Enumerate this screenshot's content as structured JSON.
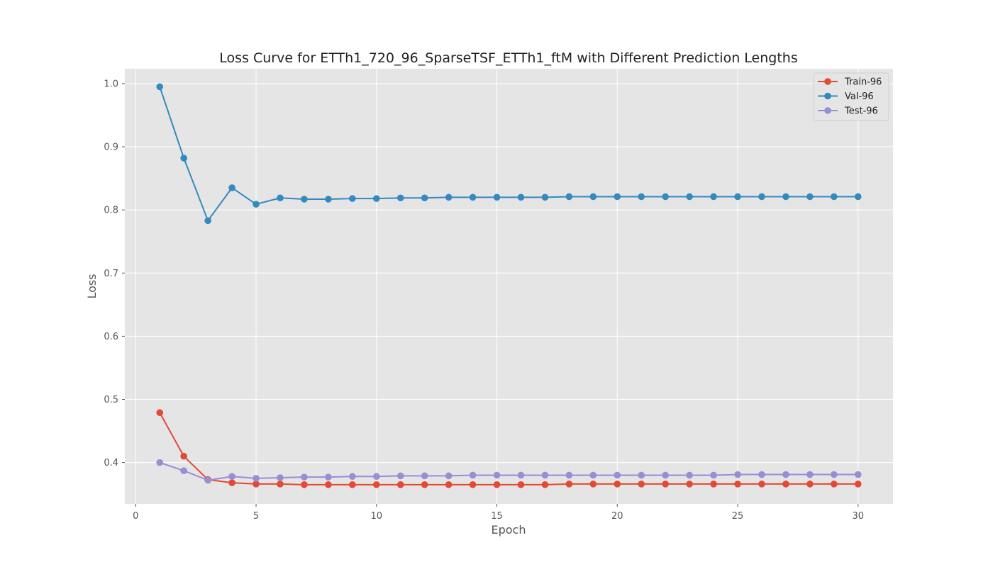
{
  "chart_data": {
    "type": "line",
    "title": "Loss Curve for ETTh1_720_96_SparseTSF_ETTh1_ftM with Different Prediction Lengths",
    "xlabel": "Epoch",
    "ylabel": "Loss",
    "xlim": [
      -0.45,
      31.45
    ],
    "ylim": [
      0.3345,
      1.0235
    ],
    "xticks": [
      0,
      5,
      10,
      15,
      20,
      25,
      30
    ],
    "yticks": [
      0.4,
      0.5,
      0.6,
      0.7,
      0.8,
      0.9,
      1.0
    ],
    "xtick_labels": [
      "0",
      "5",
      "10",
      "15",
      "20",
      "25",
      "30"
    ],
    "ytick_labels": [
      "0.4",
      "0.5",
      "0.6",
      "0.7",
      "0.8",
      "0.9",
      "1.0"
    ],
    "grid": true,
    "legend_position": "top-right",
    "x": [
      1,
      2,
      3,
      4,
      5,
      6,
      7,
      8,
      9,
      10,
      11,
      12,
      13,
      14,
      15,
      16,
      17,
      18,
      19,
      20,
      21,
      22,
      23,
      24,
      25,
      26,
      27,
      28,
      29,
      30
    ],
    "series": [
      {
        "name": "Train-96",
        "color": "#E24A33",
        "values": [
          0.479,
          0.41,
          0.373,
          0.368,
          0.366,
          0.366,
          0.365,
          0.365,
          0.365,
          0.365,
          0.365,
          0.365,
          0.365,
          0.365,
          0.365,
          0.365,
          0.365,
          0.366,
          0.366,
          0.366,
          0.366,
          0.366,
          0.366,
          0.366,
          0.366,
          0.366,
          0.366,
          0.366,
          0.366,
          0.366
        ]
      },
      {
        "name": "Val-96",
        "color": "#348ABD",
        "values": [
          0.995,
          0.882,
          0.783,
          0.835,
          0.809,
          0.819,
          0.817,
          0.817,
          0.818,
          0.818,
          0.819,
          0.819,
          0.82,
          0.82,
          0.82,
          0.82,
          0.82,
          0.821,
          0.821,
          0.821,
          0.821,
          0.821,
          0.821,
          0.821,
          0.821,
          0.821,
          0.821,
          0.821,
          0.821,
          0.821
        ]
      },
      {
        "name": "Test-96",
        "color": "#988ED5",
        "values": [
          0.4,
          0.387,
          0.372,
          0.378,
          0.375,
          0.376,
          0.377,
          0.377,
          0.378,
          0.378,
          0.379,
          0.379,
          0.379,
          0.38,
          0.38,
          0.38,
          0.38,
          0.38,
          0.38,
          0.38,
          0.38,
          0.38,
          0.38,
          0.38,
          0.381,
          0.381,
          0.381,
          0.381,
          0.381,
          0.381
        ]
      }
    ]
  }
}
